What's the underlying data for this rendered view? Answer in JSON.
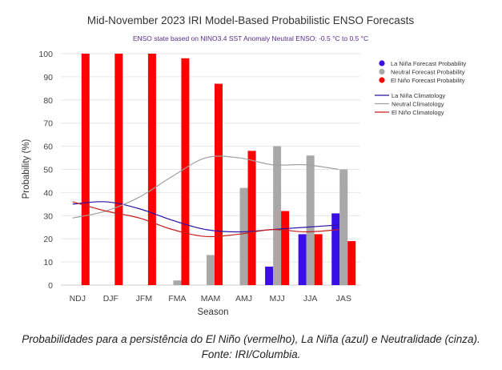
{
  "chart_data": {
    "type": "bar",
    "title": "Mid-November 2023 IRI Model-Based Probabilistic ENSO Forecasts",
    "subtitle": "ENSO state based on NINO3.4 SST Anomaly Neutral ENSO: -0.5 °C to 0.5 °C",
    "xlabel": "Season",
    "ylabel": "Probability (%)",
    "ylim": [
      0,
      100
    ],
    "yticks": [
      0,
      10,
      20,
      30,
      40,
      50,
      60,
      70,
      80,
      90,
      100
    ],
    "grid": true,
    "legend_position": "top-right",
    "categories": [
      "NDJ",
      "DJF",
      "JFM",
      "FMA",
      "MAM",
      "AMJ",
      "MJJ",
      "JJA",
      "JAS"
    ],
    "series": [
      {
        "name": "La Niña Forecast Probability",
        "color": "#3a0ee6",
        "values": [
          0,
          0,
          0,
          0,
          0,
          0,
          8,
          22,
          31
        ]
      },
      {
        "name": "Neutral Forecast Probability",
        "color": "#a8a8a8",
        "values": [
          0,
          0,
          0,
          2,
          13,
          42,
          60,
          56,
          50
        ]
      },
      {
        "name": "El Niño Forecast Probability",
        "color": "#ff0000",
        "values": [
          100,
          100,
          100,
          98,
          87,
          58,
          32,
          22,
          19
        ]
      }
    ],
    "lines": [
      {
        "name": "La Niña Climatology",
        "color": "#2a10a8",
        "values": [
          35,
          36,
          33,
          28,
          24,
          23,
          24,
          25,
          26
        ]
      },
      {
        "name": "Neutral Climatology",
        "color": "#a0a0a0",
        "values": [
          29,
          32,
          38,
          47,
          55,
          55,
          52,
          52,
          50
        ]
      },
      {
        "name": "El Niño Climatology",
        "color": "#c81e1e",
        "values": [
          36,
          32,
          29,
          24,
          21,
          22,
          24,
          23,
          24
        ]
      }
    ]
  },
  "caption": "Probabilidades para a persistência do El Niño (vermelho), La Niña (azul) e Neutralidade (cinza). Fonte: IRI/Columbia."
}
